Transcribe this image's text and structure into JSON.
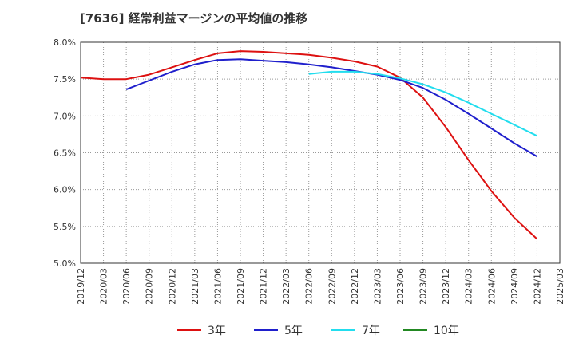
{
  "title": "[7636]  経常利益マージンの平均値の推移",
  "chart_data": {
    "type": "line",
    "title": "[7636]  経常利益マージンの平均値の推移",
    "xlabel": "",
    "ylabel": "",
    "x_ticks": [
      "2019/12",
      "2020/03",
      "2020/06",
      "2020/09",
      "2020/12",
      "2021/03",
      "2021/06",
      "2021/09",
      "2021/12",
      "2022/03",
      "2022/06",
      "2022/09",
      "2022/12",
      "2023/03",
      "2023/06",
      "2023/09",
      "2023/12",
      "2024/03",
      "2024/06",
      "2024/09",
      "2024/12",
      "2025/03"
    ],
    "y_ticks": [
      "5.0%",
      "5.5%",
      "6.0%",
      "6.5%",
      "7.0%",
      "7.5%",
      "8.0%"
    ],
    "ylim": [
      5.0,
      8.0
    ],
    "grid": true,
    "legend_position": "bottom",
    "series": [
      {
        "name": "3年",
        "color": "#dd1111",
        "points": [
          [
            "2019/12",
            7.52
          ],
          [
            "2020/03",
            7.5
          ],
          [
            "2020/06",
            7.5
          ],
          [
            "2020/09",
            7.56
          ],
          [
            "2020/12",
            7.66
          ],
          [
            "2021/03",
            7.76
          ],
          [
            "2021/06",
            7.85
          ],
          [
            "2021/09",
            7.88
          ],
          [
            "2021/12",
            7.87
          ],
          [
            "2022/03",
            7.85
          ],
          [
            "2022/06",
            7.83
          ],
          [
            "2022/09",
            7.79
          ],
          [
            "2022/12",
            7.74
          ],
          [
            "2023/03",
            7.67
          ],
          [
            "2023/06",
            7.52
          ],
          [
            "2023/09",
            7.25
          ],
          [
            "2023/12",
            6.85
          ],
          [
            "2024/03",
            6.4
          ],
          [
            "2024/06",
            5.98
          ],
          [
            "2024/09",
            5.62
          ],
          [
            "2024/12",
            5.33
          ]
        ]
      },
      {
        "name": "5年",
        "color": "#1f1fcc",
        "points": [
          [
            "2020/06",
            7.36
          ],
          [
            "2020/09",
            7.48
          ],
          [
            "2020/12",
            7.6
          ],
          [
            "2021/03",
            7.7
          ],
          [
            "2021/06",
            7.76
          ],
          [
            "2021/09",
            7.77
          ],
          [
            "2021/12",
            7.75
          ],
          [
            "2022/03",
            7.73
          ],
          [
            "2022/06",
            7.7
          ],
          [
            "2022/09",
            7.66
          ],
          [
            "2022/12",
            7.61
          ],
          [
            "2023/03",
            7.56
          ],
          [
            "2023/06",
            7.49
          ],
          [
            "2023/09",
            7.38
          ],
          [
            "2023/12",
            7.22
          ],
          [
            "2024/03",
            7.03
          ],
          [
            "2024/06",
            6.83
          ],
          [
            "2024/09",
            6.63
          ],
          [
            "2024/12",
            6.45
          ]
        ]
      },
      {
        "name": "7年",
        "color": "#22ddee",
        "points": [
          [
            "2022/06",
            7.57
          ],
          [
            "2022/09",
            7.6
          ],
          [
            "2022/12",
            7.6
          ],
          [
            "2023/03",
            7.57
          ],
          [
            "2023/06",
            7.51
          ],
          [
            "2023/09",
            7.43
          ],
          [
            "2023/12",
            7.32
          ],
          [
            "2024/03",
            7.18
          ],
          [
            "2024/06",
            7.03
          ],
          [
            "2024/09",
            6.88
          ],
          [
            "2024/12",
            6.73
          ]
        ]
      },
      {
        "name": "10年",
        "color": "#228822",
        "points": []
      }
    ]
  }
}
